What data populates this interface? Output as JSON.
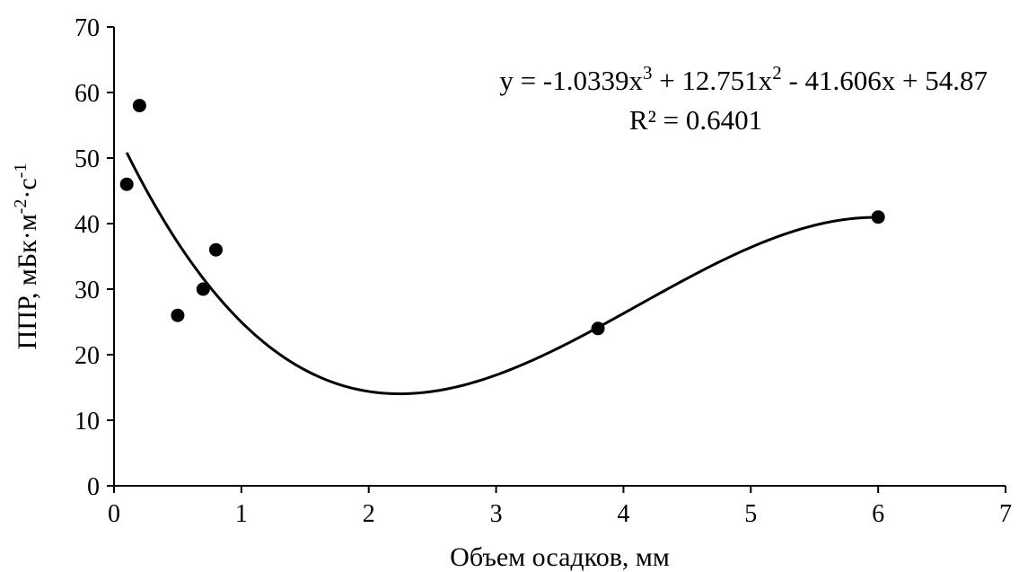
{
  "chart_data": {
    "type": "scatter",
    "title": "",
    "xlabel": "Объем осадков, мм",
    "ylabel": "ППР, мБк·м⁻²·с⁻¹",
    "ylabel_parts": {
      "base": "ППР, мБк·м",
      "exp1": "-2",
      "mid": "·с",
      "exp2": "-1"
    },
    "xlim": [
      0,
      7
    ],
    "ylim": [
      0,
      70
    ],
    "x_ticks": [
      0,
      1,
      2,
      3,
      4,
      5,
      6,
      7
    ],
    "y_ticks": [
      0,
      10,
      20,
      30,
      40,
      50,
      60,
      70
    ],
    "grid": false,
    "legend": "none",
    "series": [
      {
        "points": [
          {
            "x": 0.1,
            "y": 46
          },
          {
            "x": 0.2,
            "y": 58
          },
          {
            "x": 0.5,
            "y": 26
          },
          {
            "x": 0.7,
            "y": 30
          },
          {
            "x": 0.8,
            "y": 36
          },
          {
            "x": 3.8,
            "y": 24
          },
          {
            "x": 6.0,
            "y": 41
          }
        ],
        "color": "#000000"
      }
    ],
    "trendline": {
      "type": "polynomial",
      "order": 3,
      "coefficients": [
        -1.0339,
        12.751,
        -41.606,
        54.87
      ],
      "x_range": [
        0.1,
        6.0
      ],
      "color": "#000000"
    },
    "annotations": {
      "equation": {
        "prefix": "y = -1.0339x",
        "sup1": "3",
        "part2": " + 12.751x",
        "sup2": "2",
        "part3": " - 41.606x + 54.87"
      },
      "r2": "R² = 0.6401"
    }
  }
}
